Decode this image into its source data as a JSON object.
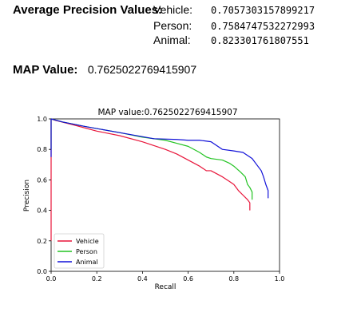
{
  "header": {
    "ap_title": "Average Precision Values:",
    "rows": [
      {
        "label": "Vehicle:",
        "value": "0.7057303157899217"
      },
      {
        "label": "Person:",
        "value": "0.7584747532272993"
      },
      {
        "label": "Animal:",
        "value": "0.823301761807551"
      }
    ],
    "map_label": "MAP Value:",
    "map_value": "0.7625022769415907"
  },
  "chart_data": {
    "type": "line",
    "title": "MAP value:0.7625022769415907",
    "xlabel": "Recall",
    "ylabel": "Precision",
    "xlim": [
      0.0,
      1.0
    ],
    "ylim": [
      0.0,
      1.0
    ],
    "xticks": [
      "0.0",
      "0.2",
      "0.4",
      "0.6",
      "0.8",
      "1.0"
    ],
    "yticks": [
      "0.0",
      "0.2",
      "0.4",
      "0.6",
      "0.8",
      "1.0"
    ],
    "grid": false,
    "legend_position": "lower-left",
    "series": [
      {
        "name": "Vehicle",
        "color": "#e8153a",
        "x": [
          0.0,
          0.0,
          0.02,
          0.1,
          0.2,
          0.3,
          0.4,
          0.5,
          0.55,
          0.6,
          0.65,
          0.68,
          0.7,
          0.75,
          0.78,
          0.8,
          0.82,
          0.84,
          0.86,
          0.87,
          0.87
        ],
        "y": [
          0.2,
          1.0,
          0.99,
          0.96,
          0.92,
          0.89,
          0.85,
          0.8,
          0.77,
          0.73,
          0.69,
          0.66,
          0.66,
          0.62,
          0.59,
          0.57,
          0.53,
          0.5,
          0.47,
          0.45,
          0.4
        ]
      },
      {
        "name": "Person",
        "color": "#22c322",
        "x": [
          0.0,
          0.0,
          0.05,
          0.15,
          0.3,
          0.4,
          0.5,
          0.55,
          0.6,
          0.65,
          0.68,
          0.7,
          0.75,
          0.78,
          0.8,
          0.83,
          0.85,
          0.86,
          0.87,
          0.88,
          0.88
        ],
        "y": [
          0.8,
          1.0,
          0.98,
          0.95,
          0.91,
          0.88,
          0.86,
          0.84,
          0.82,
          0.78,
          0.75,
          0.74,
          0.73,
          0.71,
          0.69,
          0.65,
          0.62,
          0.57,
          0.55,
          0.52,
          0.47
        ]
      },
      {
        "name": "Animal",
        "color": "#1010d8",
        "x": [
          0.0,
          0.0,
          0.05,
          0.15,
          0.3,
          0.45,
          0.55,
          0.6,
          0.65,
          0.7,
          0.75,
          0.8,
          0.84,
          0.88,
          0.9,
          0.92,
          0.93,
          0.94,
          0.95,
          0.95
        ],
        "y": [
          0.75,
          1.0,
          0.98,
          0.95,
          0.91,
          0.87,
          0.865,
          0.86,
          0.86,
          0.85,
          0.8,
          0.79,
          0.78,
          0.74,
          0.7,
          0.66,
          0.62,
          0.57,
          0.53,
          0.48
        ]
      }
    ]
  }
}
